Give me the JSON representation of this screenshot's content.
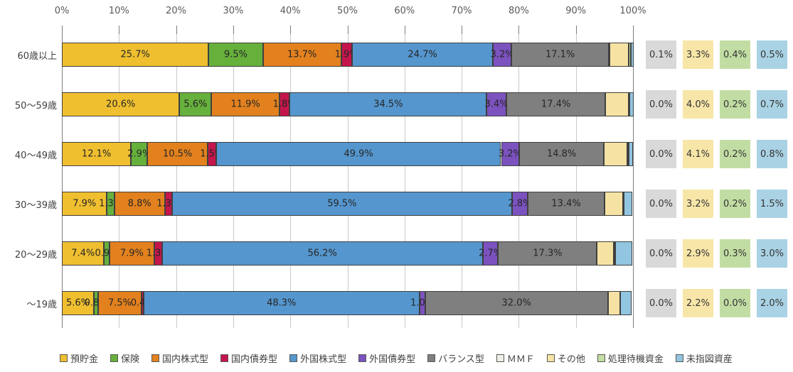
{
  "chart_data": {
    "type": "bar",
    "variant": "horizontal-stacked",
    "title": "",
    "xlabel": "",
    "ylabel": "",
    "xlim": [
      0,
      100
    ],
    "grid": true,
    "legend_position": "bottom",
    "x_ticks": [
      "0%",
      "10%",
      "20%",
      "30%",
      "40%",
      "50%",
      "60%",
      "70%",
      "80%",
      "90%",
      "100%"
    ],
    "categories": [
      "60歳以上",
      "50〜59歳",
      "40〜49歳",
      "30〜39歳",
      "20〜29歳",
      "〜19歳"
    ],
    "series": [
      {
        "name": "預貯金",
        "color": "#efbf2f",
        "labeled": true,
        "values": [
          25.7,
          20.6,
          12.1,
          7.9,
          7.4,
          5.6
        ]
      },
      {
        "name": "保険",
        "color": "#66b03c",
        "labeled": true,
        "values": [
          9.5,
          5.6,
          2.9,
          1.3,
          0.9,
          0.8
        ]
      },
      {
        "name": "国内株式型",
        "color": "#e2811e",
        "labeled": true,
        "values": [
          13.7,
          11.9,
          10.5,
          8.8,
          7.9,
          7.5
        ]
      },
      {
        "name": "国内債券型",
        "color": "#c4164c",
        "labeled": true,
        "values": [
          1.9,
          1.8,
          1.5,
          1.3,
          1.3,
          0.4
        ]
      },
      {
        "name": "外国株式型",
        "color": "#5596ce",
        "labeled": true,
        "values": [
          24.7,
          34.5,
          49.9,
          59.5,
          56.2,
          48.3
        ]
      },
      {
        "name": "外国債券型",
        "color": "#7b52be",
        "labeled": true,
        "values": [
          3.2,
          3.4,
          3.2,
          2.8,
          2.7,
          1.0
        ]
      },
      {
        "name": "バランス型",
        "color": "#7f7f7f",
        "labeled": true,
        "values": [
          17.1,
          17.4,
          14.8,
          13.4,
          17.3,
          32.0
        ]
      },
      {
        "name": "ＭＭＦ",
        "color": "#efeee6",
        "labeled": false,
        "values": [
          0.1,
          0.0,
          0.0,
          0.0,
          0.0,
          0.0
        ]
      },
      {
        "name": "その他",
        "color": "#f6e3a4",
        "labeled": false,
        "values": [
          3.3,
          4.0,
          4.1,
          3.2,
          2.9,
          2.2
        ]
      },
      {
        "name": "処理待機資金",
        "color": "#c3dda4",
        "labeled": false,
        "values": [
          0.4,
          0.2,
          0.2,
          0.2,
          0.3,
          0.0
        ]
      },
      {
        "name": "未指図資産",
        "color": "#92c5e0",
        "labeled": false,
        "values": [
          0.5,
          0.7,
          0.8,
          1.5,
          3.0,
          2.0
        ]
      }
    ],
    "side_table": {
      "columns": [
        {
          "name": "ＭＭＦ",
          "color": "#d9d9d9",
          "values": [
            "0.1%",
            "0.0%",
            "0.0%",
            "0.0%",
            "0.0%",
            "0.0%"
          ]
        },
        {
          "name": "その他",
          "color": "#f7e6a8",
          "values": [
            "3.3%",
            "4.0%",
            "4.1%",
            "3.2%",
            "2.9%",
            "2.2%"
          ]
        },
        {
          "name": "処理待機資金",
          "color": "#c2dda3",
          "values": [
            "0.4%",
            "0.2%",
            "0.2%",
            "0.2%",
            "0.3%",
            "0.0%"
          ]
        },
        {
          "name": "未指図資産",
          "color": "#a9d2e4",
          "values": [
            "0.5%",
            "0.7%",
            "0.8%",
            "1.5%",
            "3.0%",
            "2.0%"
          ]
        }
      ]
    },
    "legend_items": [
      "預貯金",
      "保険",
      "国内株式型",
      "国内債券型",
      "外国株式型",
      "外国債券型",
      "バランス型",
      "ＭＭＦ",
      "その他",
      "処理待機資金",
      "未指図資産"
    ]
  }
}
